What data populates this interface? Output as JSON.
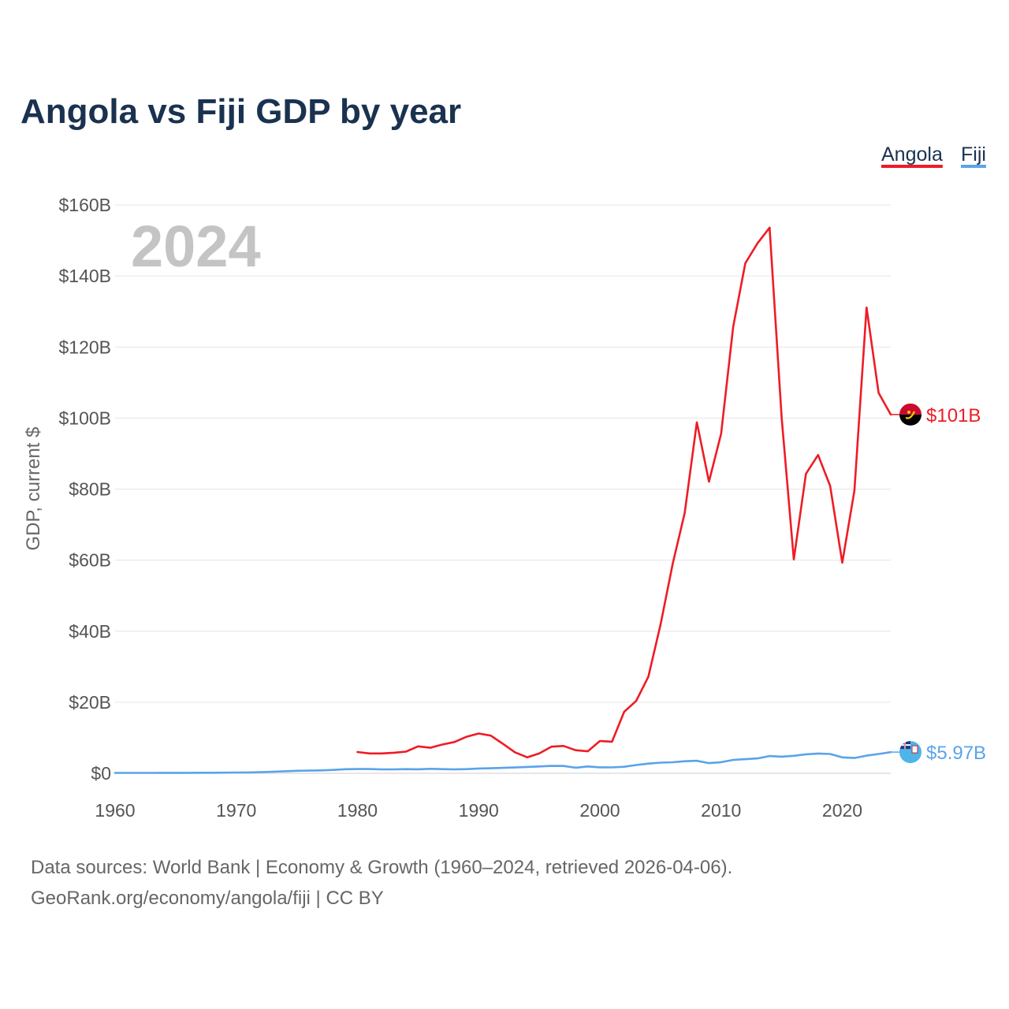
{
  "chart_data": {
    "type": "line",
    "title": "Angola vs Fiji GDP by year",
    "ylabel": "GDP, current $",
    "xlabel": "",
    "year_watermark": "2024",
    "xlim": [
      1960,
      2024
    ],
    "ylim": [
      0,
      160
    ],
    "y_unit": "billions USD",
    "x_ticks": [
      "1960",
      "1970",
      "1980",
      "1990",
      "2000",
      "2010",
      "2020"
    ],
    "x_tick_values": [
      1960,
      1970,
      1980,
      1990,
      2000,
      2010,
      2020
    ],
    "y_ticks": [
      "$0",
      "$20B",
      "$40B",
      "$60B",
      "$80B",
      "$100B",
      "$120B",
      "$140B",
      "$160B"
    ],
    "y_tick_values": [
      0,
      20,
      40,
      60,
      80,
      100,
      120,
      140,
      160
    ],
    "legend": {
      "position": "top-right"
    },
    "series": [
      {
        "name": "Angola",
        "color": "#ee1c25",
        "flag_icon": "angola-flag-icon",
        "end_label": "$101B",
        "end_value": 101,
        "x": [
          1980,
          1981,
          1982,
          1983,
          1984,
          1985,
          1986,
          1987,
          1988,
          1989,
          1990,
          1991,
          1992,
          1993,
          1994,
          1995,
          1996,
          1997,
          1998,
          1999,
          2000,
          2001,
          2002,
          2003,
          2004,
          2005,
          2006,
          2007,
          2008,
          2009,
          2010,
          2011,
          2012,
          2013,
          2014,
          2015,
          2016,
          2017,
          2018,
          2019,
          2020,
          2021,
          2022,
          2023,
          2024
        ],
        "values": [
          6.0,
          5.6,
          5.6,
          5.8,
          6.1,
          7.6,
          7.2,
          8.1,
          8.8,
          10.3,
          11.2,
          10.6,
          8.3,
          5.9,
          4.5,
          5.6,
          7.5,
          7.7,
          6.5,
          6.2,
          9.1,
          8.9,
          17.3,
          20.4,
          27.2,
          41.8,
          58.9,
          73.3,
          98.8,
          82.1,
          95.6,
          125.7,
          143.6,
          149.2,
          153.6,
          100.1,
          60.2,
          84.3,
          89.6,
          80.9,
          59.3,
          79.6,
          131.1,
          107.1,
          101.0
        ]
      },
      {
        "name": "Fiji",
        "color": "#5aa3ea",
        "flag_icon": "fiji-flag-icon",
        "end_label": "$5.97B",
        "end_value": 5.97,
        "x": [
          1960,
          1961,
          1962,
          1963,
          1964,
          1965,
          1966,
          1967,
          1968,
          1969,
          1970,
          1971,
          1972,
          1973,
          1974,
          1975,
          1976,
          1977,
          1978,
          1979,
          1980,
          1981,
          1982,
          1983,
          1984,
          1985,
          1986,
          1987,
          1988,
          1989,
          1990,
          1991,
          1992,
          1993,
          1994,
          1995,
          1996,
          1997,
          1998,
          1999,
          2000,
          2001,
          2002,
          2003,
          2004,
          2005,
          2006,
          2007,
          2008,
          2009,
          2010,
          2011,
          2012,
          2013,
          2014,
          2015,
          2016,
          2017,
          2018,
          2019,
          2020,
          2021,
          2022,
          2023,
          2024
        ],
        "values": [
          0.11,
          0.11,
          0.12,
          0.12,
          0.13,
          0.14,
          0.14,
          0.15,
          0.16,
          0.18,
          0.22,
          0.25,
          0.33,
          0.44,
          0.57,
          0.7,
          0.76,
          0.82,
          0.96,
          1.16,
          1.2,
          1.2,
          1.12,
          1.1,
          1.17,
          1.14,
          1.27,
          1.18,
          1.11,
          1.18,
          1.36,
          1.42,
          1.54,
          1.64,
          1.79,
          1.94,
          2.08,
          2.07,
          1.58,
          1.92,
          1.68,
          1.66,
          1.84,
          2.32,
          2.73,
          3.0,
          3.1,
          3.4,
          3.52,
          2.87,
          3.14,
          3.77,
          3.97,
          4.19,
          4.86,
          4.68,
          4.93,
          5.35,
          5.58,
          5.44,
          4.48,
          4.3,
          4.98,
          5.44,
          5.97
        ]
      }
    ]
  },
  "source": {
    "line1": "Data sources: World Bank | Economy & Growth (1960–2024, retrieved 2026-04-06).",
    "line2": "GeoRank.org/economy/angola/fiji | CC BY"
  }
}
